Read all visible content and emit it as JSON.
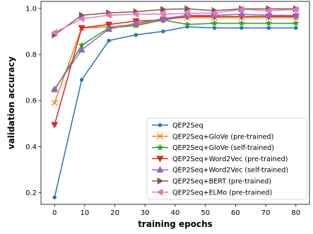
{
  "chart_data": {
    "type": "line",
    "title": "",
    "xlabel": "training epochs",
    "ylabel": "validation accuracy",
    "xlim": [
      -4.5,
      84.5
    ],
    "ylim": [
      0.15,
      1.03
    ],
    "xticks": [
      0,
      10,
      20,
      30,
      40,
      50,
      60,
      70,
      80
    ],
    "yticks": [
      0.2,
      0.4,
      0.6,
      0.8,
      1.0
    ],
    "xtick_labels": [
      "0",
      "10",
      "20",
      "30",
      "40",
      "50",
      "60",
      "70",
      "80"
    ],
    "ytick_labels": [
      "0.2",
      "0.4",
      "0.6",
      "0.8",
      "1.0"
    ],
    "grid": false,
    "legend_position": "lower-right",
    "x": [
      0,
      9,
      18,
      27,
      36,
      44,
      53,
      62,
      71,
      80
    ],
    "series": [
      {
        "name": "QEP2Seq",
        "color": "#1f77b4",
        "marker": "circle",
        "values": [
          0.18,
          0.69,
          0.86,
          0.885,
          0.9,
          0.92,
          0.915,
          0.915,
          0.915,
          0.915
        ]
      },
      {
        "name": "QEP2Seq+GloVe (pre-trained)",
        "color": "#ff7f0e",
        "marker": "x",
        "values": [
          0.59,
          0.915,
          0.92,
          0.93,
          0.955,
          0.96,
          0.96,
          0.96,
          0.96,
          0.96
        ]
      },
      {
        "name": "QEP2Seq+GloVe (self-trained)",
        "color": "#2ca02c",
        "marker": "star",
        "values": [
          0.645,
          0.84,
          0.915,
          0.925,
          0.95,
          0.93,
          0.935,
          0.935,
          0.935,
          0.935
        ]
      },
      {
        "name": "QEP2Seq+Word2Vec (pre-trained)",
        "color": "#d62728",
        "marker": "triangle-down",
        "values": [
          0.495,
          0.915,
          0.93,
          0.945,
          0.95,
          0.965,
          0.965,
          0.965,
          0.965,
          0.965
        ]
      },
      {
        "name": "QEP2Seq+Word2Vec (self-trained)",
        "color": "#9467bd",
        "marker": "triangle-up",
        "values": [
          0.65,
          0.82,
          0.91,
          0.935,
          0.955,
          0.97,
          0.97,
          0.975,
          0.97,
          0.97
        ]
      },
      {
        "name": "QEP2Seq+BERT (pre-trained)",
        "color": "#8c564b",
        "marker": "triangle-right",
        "values": [
          0.885,
          0.97,
          0.98,
          0.985,
          0.995,
          0.998,
          0.99,
          0.998,
          0.998,
          0.998
        ]
      },
      {
        "name": "QEP2Seq+ELMo (pre-trained)",
        "color": "#e377c2",
        "marker": "triangle-left",
        "values": [
          0.895,
          0.955,
          0.97,
          0.975,
          0.975,
          0.978,
          0.98,
          0.995,
          0.99,
          0.995
        ]
      }
    ]
  }
}
